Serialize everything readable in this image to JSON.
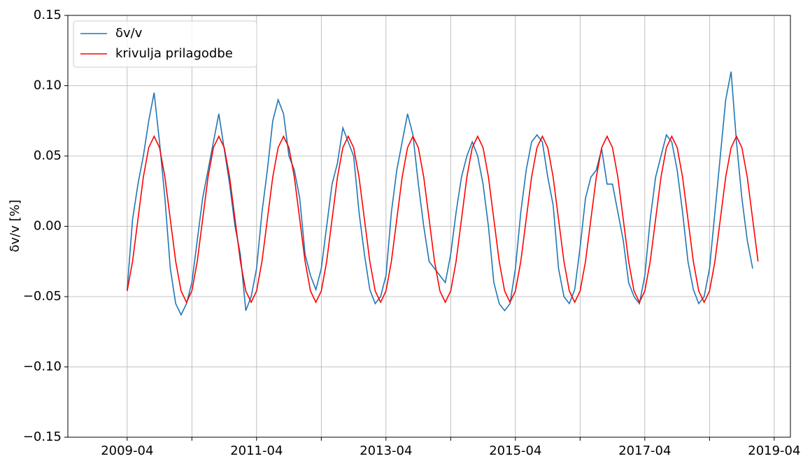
{
  "chart_data": {
    "type": "line",
    "ylabel": "δv/v [%]",
    "x": [
      "2009-04",
      "2009-05",
      "2009-06",
      "2009-07",
      "2009-08",
      "2009-09",
      "2009-10",
      "2009-11",
      "2009-12",
      "2010-01",
      "2010-02",
      "2010-03",
      "2010-04",
      "2010-05",
      "2010-06",
      "2010-07",
      "2010-08",
      "2010-09",
      "2010-10",
      "2010-11",
      "2010-12",
      "2011-01",
      "2011-02",
      "2011-03",
      "2011-04",
      "2011-05",
      "2011-06",
      "2011-07",
      "2011-08",
      "2011-09",
      "2011-10",
      "2011-11",
      "2011-12",
      "2012-01",
      "2012-02",
      "2012-03",
      "2012-04",
      "2012-05",
      "2012-06",
      "2012-07",
      "2012-08",
      "2012-09",
      "2012-10",
      "2012-11",
      "2012-12",
      "2013-01",
      "2013-02",
      "2013-03",
      "2013-04",
      "2013-05",
      "2013-06",
      "2013-07",
      "2013-08",
      "2013-09",
      "2013-10",
      "2013-11",
      "2013-12",
      "2014-01",
      "2014-02",
      "2014-03",
      "2014-04",
      "2014-05",
      "2014-06",
      "2014-07",
      "2014-08",
      "2014-09",
      "2014-10",
      "2014-11",
      "2014-12",
      "2015-01",
      "2015-02",
      "2015-03",
      "2015-04",
      "2015-05",
      "2015-06",
      "2015-07",
      "2015-08",
      "2015-09",
      "2015-10",
      "2015-11",
      "2015-12",
      "2016-01",
      "2016-02",
      "2016-03",
      "2016-04",
      "2016-05",
      "2016-06",
      "2016-07",
      "2016-08",
      "2016-09",
      "2016-10",
      "2016-11",
      "2016-12",
      "2017-01",
      "2017-02",
      "2017-03",
      "2017-04",
      "2017-05",
      "2017-06",
      "2017-07",
      "2017-08",
      "2017-09",
      "2017-10",
      "2017-11",
      "2017-12",
      "2018-01",
      "2018-02",
      "2018-03",
      "2018-04",
      "2018-05",
      "2018-06",
      "2018-07",
      "2018-08",
      "2018-09",
      "2018-10",
      "2018-11",
      "2018-12",
      "2019-01"
    ],
    "series": [
      {
        "name": "δv/v",
        "color": "#1f77b4",
        "values": [
          -0.045,
          0.005,
          0.03,
          0.05,
          0.075,
          0.095,
          0.06,
          0.02,
          -0.03,
          -0.055,
          -0.063,
          -0.055,
          -0.04,
          -0.01,
          0.02,
          0.04,
          0.06,
          0.08,
          0.055,
          0.03,
          0.0,
          -0.02,
          -0.06,
          -0.05,
          -0.03,
          0.01,
          0.04,
          0.075,
          0.09,
          0.08,
          0.05,
          0.04,
          0.02,
          -0.02,
          -0.035,
          -0.045,
          -0.03,
          0.0,
          0.03,
          0.045,
          0.07,
          0.06,
          0.05,
          0.01,
          -0.02,
          -0.045,
          -0.055,
          -0.05,
          -0.035,
          0.01,
          0.04,
          0.06,
          0.08,
          0.065,
          0.03,
          0.0,
          -0.025,
          -0.03,
          -0.035,
          -0.04,
          -0.02,
          0.01,
          0.035,
          0.05,
          0.06,
          0.05,
          0.03,
          0.0,
          -0.04,
          -0.055,
          -0.06,
          -0.055,
          -0.03,
          0.01,
          0.04,
          0.06,
          0.065,
          0.06,
          0.035,
          0.015,
          -0.03,
          -0.05,
          -0.055,
          -0.045,
          -0.015,
          0.02,
          0.035,
          0.04,
          0.055,
          0.03,
          0.03,
          0.01,
          -0.01,
          -0.04,
          -0.05,
          -0.055,
          -0.035,
          0.005,
          0.035,
          0.05,
          0.065,
          0.06,
          0.04,
          0.01,
          -0.025,
          -0.045,
          -0.055,
          -0.05,
          -0.03,
          0.01,
          0.05,
          0.09,
          0.11,
          0.06,
          0.02,
          -0.01,
          -0.03,
          null
        ]
      },
      {
        "name": "krivulja prilagodbe",
        "color": "#ff0000",
        "values": [
          -0.046,
          -0.025,
          0.005,
          0.035,
          0.056,
          0.064,
          0.056,
          0.035,
          0.005,
          -0.025,
          -0.046,
          -0.054,
          -0.046,
          -0.025,
          0.005,
          0.035,
          0.056,
          0.064,
          0.056,
          0.035,
          0.005,
          -0.025,
          -0.046,
          -0.054,
          -0.046,
          -0.025,
          0.005,
          0.035,
          0.056,
          0.064,
          0.056,
          0.035,
          0.005,
          -0.025,
          -0.046,
          -0.054,
          -0.046,
          -0.025,
          0.005,
          0.035,
          0.056,
          0.064,
          0.056,
          0.035,
          0.005,
          -0.025,
          -0.046,
          -0.054,
          -0.046,
          -0.025,
          0.005,
          0.035,
          0.056,
          0.064,
          0.056,
          0.035,
          0.005,
          -0.025,
          -0.046,
          -0.054,
          -0.046,
          -0.025,
          0.005,
          0.035,
          0.056,
          0.064,
          0.056,
          0.035,
          0.005,
          -0.025,
          -0.046,
          -0.054,
          -0.046,
          -0.025,
          0.005,
          0.035,
          0.056,
          0.064,
          0.056,
          0.035,
          0.005,
          -0.025,
          -0.046,
          -0.054,
          -0.046,
          -0.025,
          0.005,
          0.035,
          0.056,
          0.064,
          0.056,
          0.035,
          0.005,
          -0.025,
          -0.046,
          -0.054,
          -0.046,
          -0.025,
          0.005,
          0.035,
          0.056,
          0.064,
          0.056,
          0.035,
          0.005,
          -0.025,
          -0.046,
          -0.054,
          -0.046,
          -0.025,
          0.005,
          0.035,
          0.056,
          0.064,
          0.056,
          0.035,
          0.005,
          -0.025
        ]
      }
    ],
    "xlim": [
      "2008-05",
      "2019-07"
    ],
    "xticks": [
      "2009-04",
      "2011-04",
      "2013-04",
      "2015-04",
      "2017-04",
      "2019-04"
    ],
    "xminorticks": [
      "2010-04",
      "2012-04",
      "2014-04",
      "2016-04",
      "2018-04"
    ],
    "ylim": [
      -0.15,
      0.15
    ],
    "yticks": [
      {
        "value": -0.15,
        "label": "−0.15"
      },
      {
        "value": -0.1,
        "label": "−0.10"
      },
      {
        "value": -0.05,
        "label": "−0.05"
      },
      {
        "value": 0,
        "label": "0.00"
      },
      0.05,
      {
        "value": 0.1,
        "label": "0.10"
      },
      0.15
    ],
    "grid": true,
    "legend": "upper left"
  }
}
